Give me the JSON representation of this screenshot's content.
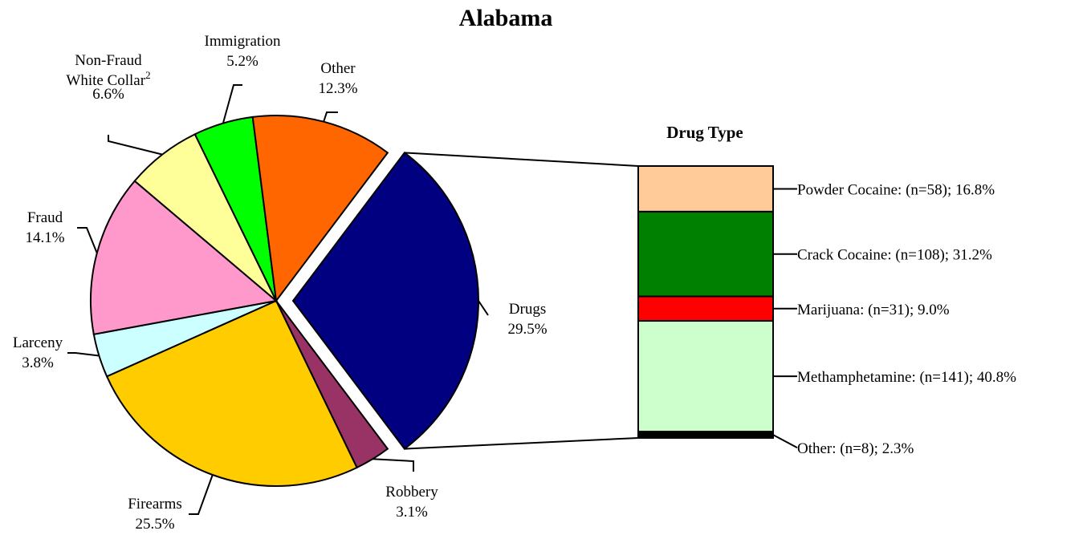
{
  "chart_data": [
    {
      "type": "pie",
      "title": "Alabama",
      "slices": [
        {
          "name": "Drugs",
          "value": 29.5,
          "label": "29.5%",
          "color": "#000080",
          "exploded": true
        },
        {
          "name": "Robbery",
          "value": 3.1,
          "label": "3.1%",
          "color": "#993366"
        },
        {
          "name": "Firearms",
          "value": 25.5,
          "label": "25.5%",
          "color": "#FFCC00"
        },
        {
          "name": "Larceny",
          "value": 3.8,
          "label": "3.8%",
          "color": "#CCFFFF"
        },
        {
          "name": "Fraud",
          "value": 14.1,
          "label": "14.1%",
          "color": "#FF99CC"
        },
        {
          "name": "Non-Fraud",
          "name_line2": "White Collar",
          "footnote": "2",
          "value": 6.6,
          "label": "6.6%",
          "color": "#FFFF99"
        },
        {
          "name": "Immigration",
          "value": 5.2,
          "label": "5.2%",
          "color": "#00FF00"
        },
        {
          "name": "Other",
          "value": 12.3,
          "label": "12.3%",
          "color": "#FF6600"
        }
      ]
    },
    {
      "type": "bar",
      "stacked": true,
      "title": "Drug Type",
      "segments": [
        {
          "name": "Powder Cocaine",
          "count": 58,
          "value": 16.8,
          "label": "Powder Cocaine: (n=58); 16.8%",
          "color": "#FFCC99"
        },
        {
          "name": "Crack Cocaine",
          "count": 108,
          "value": 31.2,
          "label": "Crack Cocaine: (n=108); 31.2%",
          "color": "#008000"
        },
        {
          "name": "Marijuana",
          "count": 31,
          "value": 9.0,
          "label": "Marijuana: (n=31); 9.0%",
          "color": "#FF0000"
        },
        {
          "name": "Methamphetamine",
          "count": 141,
          "value": 40.8,
          "label": "Methamphetamine: (n=141); 40.8%",
          "color": "#CCFFCC"
        },
        {
          "name": "Other",
          "count": 8,
          "value": 2.3,
          "label": "Other: (n=8); 2.3%",
          "color": "#000000"
        }
      ]
    }
  ]
}
